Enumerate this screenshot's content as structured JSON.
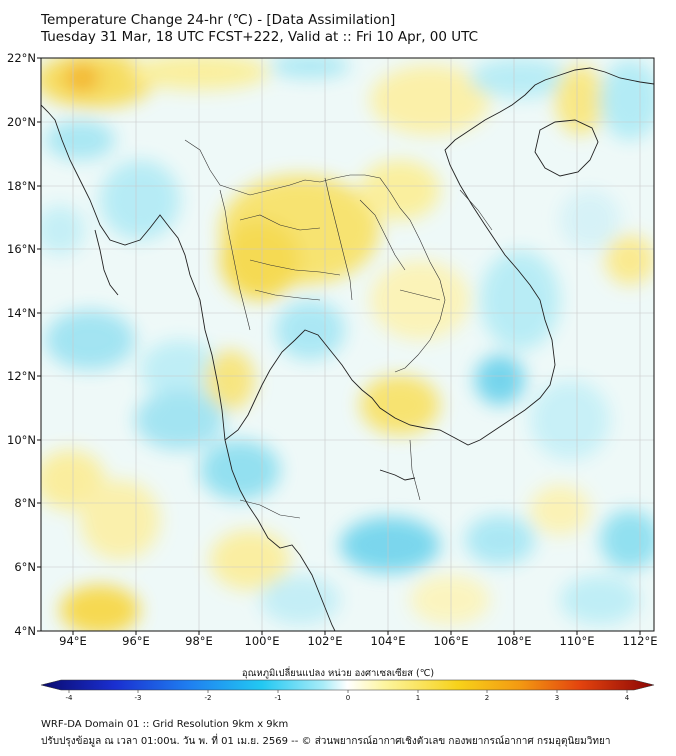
{
  "header": {
    "title_line1": "Temperature Change 24-hr (℃) - [Data Assimilation]",
    "title_line2": "Tuesday 31 Mar, 18 UTC FCST+222, Valid at :: Fri 10 Apr, 00 UTC"
  },
  "map": {
    "lon_ticks": [
      "94°E",
      "96°E",
      "98°E",
      "100°E",
      "102°E",
      "104°E",
      "106°E",
      "108°E",
      "110°E",
      "112°E"
    ],
    "lat_ticks": [
      "22°N",
      "20°N",
      "18°N",
      "16°N",
      "14°N",
      "12°N",
      "10°N",
      "8°N",
      "6°N",
      "4°N"
    ]
  },
  "colorbar": {
    "label": "อุณหภูมิเปลี่ยนแปลง หน่วย องศาเซลเซียส (℃)",
    "ticks": [
      "-4",
      "-3",
      "-2",
      "-1",
      "0",
      "1",
      "2",
      "3",
      "4"
    ],
    "min": -4,
    "max": 4,
    "colors": [
      "#0a0a6e",
      "#1a2fd0",
      "#1f7ef0",
      "#22c8f2",
      "#a8ecf8",
      "#ffffff",
      "#fdf5a0",
      "#f7d21a",
      "#f39a12",
      "#e3430e",
      "#8a0505"
    ]
  },
  "footer": {
    "line1": "WRF-DA Domain 01 :: Grid Resolution 9km x 9km",
    "line2": "ปรับปรุงข้อมูล ณ เวลา 01:00น. วัน พ. ที่ 01 เม.ย. 2569 -- © ส่วนพยากรณ์อากาศเชิงตัวเลข กองพยากรณ์อากาศ กรมอุตุนิยมวิทยา"
  }
}
